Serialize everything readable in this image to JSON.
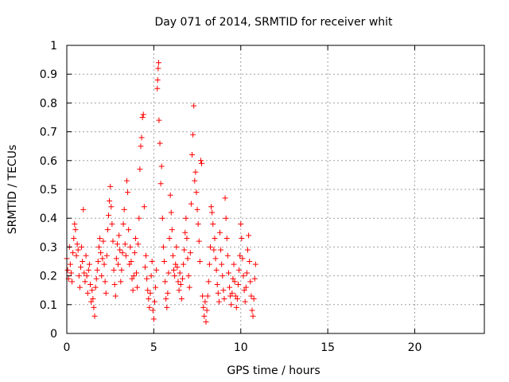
{
  "chart_data": {
    "type": "scatter",
    "title": "Day 071 of 2014, SRMTID for receiver whit",
    "xlabel": "GPS time / hours",
    "ylabel": "SRMTID / TECUs",
    "xlim": [
      0,
      24
    ],
    "ylim": [
      0,
      1
    ],
    "x_ticks": [
      0,
      5,
      10,
      15,
      20
    ],
    "x_tick_labels": [
      "0",
      "5",
      "10",
      "15",
      "20"
    ],
    "y_ticks": [
      0,
      0.1,
      0.2,
      0.3,
      0.4,
      0.5,
      0.6,
      0.7,
      0.8,
      0.9,
      1
    ],
    "y_tick_labels": [
      "0",
      "0.1",
      "0.2",
      "0.3",
      "0.4",
      "0.5",
      "0.6",
      "0.7",
      "0.8",
      "0.9",
      "1"
    ],
    "grid": true,
    "marker": "+",
    "series": [
      {
        "name": "SRMTID",
        "color": "#ff0000",
        "points": [
          [
            0.0,
            0.26
          ],
          [
            0.05,
            0.22
          ],
          [
            0.1,
            0.19
          ],
          [
            0.15,
            0.3
          ],
          [
            0.2,
            0.24
          ],
          [
            0.25,
            0.21
          ],
          [
            0.3,
            0.18
          ],
          [
            0.35,
            0.28
          ],
          [
            0.4,
            0.33
          ],
          [
            0.45,
            0.38
          ],
          [
            0.5,
            0.36
          ],
          [
            0.55,
            0.27
          ],
          [
            0.6,
            0.31
          ],
          [
            0.65,
            0.29
          ],
          [
            0.7,
            0.2
          ],
          [
            0.75,
            0.16
          ],
          [
            0.8,
            0.23
          ],
          [
            0.85,
            0.3
          ],
          [
            0.9,
            0.25
          ],
          [
            0.95,
            0.43
          ],
          [
            1.0,
            0.21
          ],
          [
            1.05,
            0.18
          ],
          [
            1.1,
            0.27
          ],
          [
            1.15,
            0.2
          ],
          [
            1.2,
            0.14
          ],
          [
            1.25,
            0.22
          ],
          [
            1.3,
            0.24
          ],
          [
            1.35,
            0.17
          ],
          [
            1.4,
            0.11
          ],
          [
            1.45,
            0.15
          ],
          [
            1.5,
            0.12
          ],
          [
            1.55,
            0.09
          ],
          [
            1.6,
            0.06
          ],
          [
            1.65,
            0.16
          ],
          [
            1.7,
            0.19
          ],
          [
            1.75,
            0.22
          ],
          [
            1.8,
            0.25
          ],
          [
            1.85,
            0.3
          ],
          [
            1.9,
            0.33
          ],
          [
            1.95,
            0.28
          ],
          [
            2.0,
            0.2
          ],
          [
            2.05,
            0.26
          ],
          [
            2.1,
            0.32
          ],
          [
            2.15,
            0.24
          ],
          [
            2.2,
            0.18
          ],
          [
            2.25,
            0.14
          ],
          [
            2.3,
            0.27
          ],
          [
            2.35,
            0.36
          ],
          [
            2.4,
            0.41
          ],
          [
            2.45,
            0.46
          ],
          [
            2.5,
            0.51
          ],
          [
            2.55,
            0.44
          ],
          [
            2.6,
            0.38
          ],
          [
            2.65,
            0.32
          ],
          [
            2.7,
            0.22
          ],
          [
            2.75,
            0.17
          ],
          [
            2.8,
            0.13
          ],
          [
            2.85,
            0.26
          ],
          [
            2.9,
            0.31
          ],
          [
            2.95,
            0.24
          ],
          [
            3.0,
            0.34
          ],
          [
            3.05,
            0.29
          ],
          [
            3.1,
            0.18
          ],
          [
            3.15,
            0.22
          ],
          [
            3.2,
            0.28
          ],
          [
            3.25,
            0.38
          ],
          [
            3.3,
            0.43
          ],
          [
            3.35,
            0.31
          ],
          [
            3.4,
            0.27
          ],
          [
            3.45,
            0.53
          ],
          [
            3.5,
            0.49
          ],
          [
            3.55,
            0.36
          ],
          [
            3.6,
            0.24
          ],
          [
            3.65,
            0.3
          ],
          [
            3.7,
            0.25
          ],
          [
            3.75,
            0.19
          ],
          [
            3.8,
            0.15
          ],
          [
            3.85,
            0.2
          ],
          [
            3.9,
            0.28
          ],
          [
            3.95,
            0.33
          ],
          [
            4.0,
            0.21
          ],
          [
            4.05,
            0.16
          ],
          [
            4.1,
            0.31
          ],
          [
            4.15,
            0.4
          ],
          [
            4.2,
            0.57
          ],
          [
            4.25,
            0.65
          ],
          [
            4.3,
            0.68
          ],
          [
            4.35,
            0.75
          ],
          [
            4.4,
            0.76
          ],
          [
            4.45,
            0.44
          ],
          [
            4.5,
            0.23
          ],
          [
            4.55,
            0.27
          ],
          [
            4.6,
            0.19
          ],
          [
            4.65,
            0.15
          ],
          [
            4.7,
            0.12
          ],
          [
            4.75,
            0.09
          ],
          [
            4.8,
            0.14
          ],
          [
            4.85,
            0.2
          ],
          [
            4.9,
            0.25
          ],
          [
            4.95,
            0.08
          ],
          [
            5.0,
            0.05
          ],
          [
            5.05,
            0.11
          ],
          [
            5.1,
            0.16
          ],
          [
            5.15,
            0.22
          ],
          [
            5.2,
            0.85
          ],
          [
            5.22,
            0.88
          ],
          [
            5.25,
            0.92
          ],
          [
            5.28,
            0.94
          ],
          [
            5.3,
            0.74
          ],
          [
            5.35,
            0.66
          ],
          [
            5.4,
            0.52
          ],
          [
            5.45,
            0.58
          ],
          [
            5.5,
            0.4
          ],
          [
            5.55,
            0.3
          ],
          [
            5.6,
            0.25
          ],
          [
            5.65,
            0.18
          ],
          [
            5.7,
            0.12
          ],
          [
            5.75,
            0.09
          ],
          [
            5.8,
            0.14
          ],
          [
            5.85,
            0.21
          ],
          [
            5.9,
            0.33
          ],
          [
            5.95,
            0.48
          ],
          [
            6.0,
            0.42
          ],
          [
            6.05,
            0.36
          ],
          [
            6.1,
            0.27
          ],
          [
            6.15,
            0.22
          ],
          [
            6.2,
            0.2
          ],
          [
            6.25,
            0.24
          ],
          [
            6.3,
            0.3
          ],
          [
            6.35,
            0.23
          ],
          [
            6.4,
            0.18
          ],
          [
            6.45,
            0.15
          ],
          [
            6.5,
            0.21
          ],
          [
            6.55,
            0.17
          ],
          [
            6.6,
            0.12
          ],
          [
            6.65,
            0.19
          ],
          [
            6.7,
            0.24
          ],
          [
            6.75,
            0.29
          ],
          [
            6.8,
            0.35
          ],
          [
            6.85,
            0.4
          ],
          [
            6.9,
            0.33
          ],
          [
            6.95,
            0.26
          ],
          [
            7.0,
            0.2
          ],
          [
            7.05,
            0.16
          ],
          [
            7.1,
            0.28
          ],
          [
            7.15,
            0.45
          ],
          [
            7.2,
            0.62
          ],
          [
            7.25,
            0.69
          ],
          [
            7.3,
            0.79
          ],
          [
            7.35,
            0.53
          ],
          [
            7.4,
            0.56
          ],
          [
            7.45,
            0.49
          ],
          [
            7.5,
            0.43
          ],
          [
            7.55,
            0.38
          ],
          [
            7.6,
            0.32
          ],
          [
            7.65,
            0.25
          ],
          [
            7.7,
            0.6
          ],
          [
            7.75,
            0.59
          ],
          [
            7.8,
            0.13
          ],
          [
            7.85,
            0.09
          ],
          [
            7.9,
            0.06
          ],
          [
            7.95,
            0.11
          ],
          [
            8.0,
            0.04
          ],
          [
            8.05,
            0.08
          ],
          [
            8.1,
            0.13
          ],
          [
            8.15,
            0.18
          ],
          [
            8.2,
            0.24
          ],
          [
            8.25,
            0.3
          ],
          [
            8.3,
            0.44
          ],
          [
            8.35,
            0.42
          ],
          [
            8.4,
            0.38
          ],
          [
            8.45,
            0.29
          ],
          [
            8.5,
            0.33
          ],
          [
            8.55,
            0.26
          ],
          [
            8.6,
            0.22
          ],
          [
            8.65,
            0.17
          ],
          [
            8.7,
            0.14
          ],
          [
            8.75,
            0.11
          ],
          [
            8.8,
            0.35
          ],
          [
            8.85,
            0.29
          ],
          [
            8.9,
            0.24
          ],
          [
            8.95,
            0.2
          ],
          [
            9.0,
            0.15
          ],
          [
            9.05,
            0.12
          ],
          [
            9.1,
            0.47
          ],
          [
            9.15,
            0.4
          ],
          [
            9.2,
            0.33
          ],
          [
            9.25,
            0.27
          ],
          [
            9.3,
            0.21
          ],
          [
            9.35,
            0.16
          ],
          [
            9.4,
            0.13
          ],
          [
            9.45,
            0.1
          ],
          [
            9.5,
            0.14
          ],
          [
            9.55,
            0.19
          ],
          [
            9.6,
            0.24
          ],
          [
            9.65,
            0.18
          ],
          [
            9.7,
            0.13
          ],
          [
            9.75,
            0.09
          ],
          [
            9.8,
            0.12
          ],
          [
            9.85,
            0.17
          ],
          [
            9.9,
            0.22
          ],
          [
            9.95,
            0.27
          ],
          [
            10.0,
            0.38
          ],
          [
            10.05,
            0.33
          ],
          [
            10.1,
            0.26
          ],
          [
            10.15,
            0.2
          ],
          [
            10.2,
            0.15
          ],
          [
            10.25,
            0.11
          ],
          [
            10.3,
            0.16
          ],
          [
            10.35,
            0.21
          ],
          [
            10.4,
            0.29
          ],
          [
            10.45,
            0.34
          ],
          [
            10.5,
            0.25
          ],
          [
            10.55,
            0.18
          ],
          [
            10.6,
            0.13
          ],
          [
            10.65,
            0.08
          ],
          [
            10.7,
            0.06
          ],
          [
            10.75,
            0.12
          ],
          [
            10.8,
            0.19
          ],
          [
            10.85,
            0.24
          ]
        ]
      }
    ]
  }
}
